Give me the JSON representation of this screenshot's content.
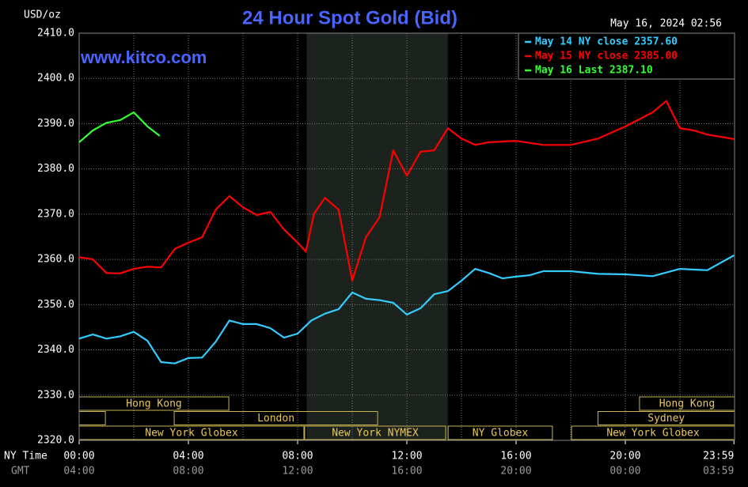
{
  "chart_data": {
    "type": "line",
    "title": "24 Hour Spot Gold (Bid)",
    "y_unit": "USD/oz",
    "timestamp": "May 16, 2024 02:56",
    "watermark": "www.kitco.com",
    "x_axis_labels": [
      "NY Time",
      "GMT"
    ],
    "xlim": [
      0,
      24
    ],
    "xticks": [
      {
        "value": 0,
        "label": "00:00"
      },
      {
        "value": 4,
        "label": "04:00"
      },
      {
        "value": 8,
        "label": "08:00"
      },
      {
        "value": 12,
        "label": "12:00"
      },
      {
        "value": 16,
        "label": "16:00"
      },
      {
        "value": 20,
        "label": "20:00"
      },
      {
        "value": 23.98,
        "label": "23:59"
      }
    ],
    "x_secondary_labels": [
      "04:00",
      "08:00",
      "12:00",
      "16:00",
      "20:00",
      "00:00",
      "03:59"
    ],
    "x_gridlines": [
      0,
      2,
      4,
      6,
      8,
      10,
      12,
      14,
      16,
      18,
      20,
      22,
      24
    ],
    "ylim": [
      2320,
      2410
    ],
    "yticks": [
      {
        "value": 2320,
        "label": "2320.0"
      },
      {
        "value": 2330,
        "label": "2330.0"
      },
      {
        "value": 2340,
        "label": "2340.0"
      },
      {
        "value": 2350,
        "label": "2350.0"
      },
      {
        "value": 2360,
        "label": "2360.0"
      },
      {
        "value": 2370,
        "label": "2370.0"
      },
      {
        "value": 2380,
        "label": "2380.0"
      },
      {
        "value": 2390,
        "label": "2390.0"
      },
      {
        "value": 2400,
        "label": "2400.0"
      },
      {
        "value": 2410,
        "label": "2410.0"
      }
    ],
    "grid": true,
    "shaded_region": [
      8.33,
      13.5
    ],
    "legend_position": "top-right",
    "series": [
      {
        "name": "May 14 NY close 2357.60",
        "color": "#33ccff",
        "x": [
          0,
          0.5,
          1,
          1.5,
          2,
          2.5,
          3,
          3.5,
          4,
          4.5,
          5,
          5.5,
          6,
          6.5,
          7,
          7.5,
          8,
          8.5,
          9,
          9.5,
          10,
          10.5,
          11,
          11.5,
          12,
          12.5,
          13,
          13.5,
          14,
          14.5,
          15,
          15.5,
          16,
          16.5,
          17,
          18,
          19,
          20,
          21,
          22,
          23,
          23.98
        ],
        "values": [
          2342.5,
          2343.4,
          2342.5,
          2343,
          2344,
          2342,
          2337.3,
          2337,
          2338.2,
          2338.3,
          2341.8,
          2346.5,
          2345.7,
          2345.7,
          2344.8,
          2342.7,
          2343.6,
          2346.5,
          2348,
          2349,
          2352.7,
          2351.3,
          2351,
          2350.4,
          2347.8,
          2349.2,
          2352.3,
          2353,
          2355.3,
          2357.9,
          2357,
          2355.8,
          2356.2,
          2356.5,
          2357.4,
          2357.4,
          2356.8,
          2356.7,
          2356.3,
          2357.9,
          2357.6,
          2360.9
        ]
      },
      {
        "name": "May 15 NY close 2385.00",
        "color": "#ff0000",
        "x": [
          0,
          0.5,
          1,
          1.5,
          2,
          2.5,
          3,
          3.5,
          4,
          4.5,
          5,
          5.5,
          6,
          6.5,
          7,
          7.5,
          8,
          8.3,
          8.6,
          9,
          9.5,
          10,
          10.5,
          11,
          11.5,
          12,
          12.5,
          13,
          13.5,
          14,
          14.5,
          15,
          16,
          17,
          18,
          19,
          20,
          21,
          21.5,
          22,
          22.5,
          23,
          23.98
        ],
        "values": [
          2360.5,
          2360,
          2357,
          2356.9,
          2357.9,
          2358.4,
          2358.2,
          2362.3,
          2363.7,
          2364.9,
          2371,
          2374,
          2371.5,
          2369.8,
          2370.5,
          2366.6,
          2363.7,
          2361.7,
          2370.1,
          2373.6,
          2371,
          2355.3,
          2364.9,
          2369.3,
          2384.1,
          2378.5,
          2383.8,
          2384.1,
          2389,
          2386.7,
          2385.3,
          2385.9,
          2386.2,
          2385.3,
          2385.3,
          2386.7,
          2389.4,
          2392.5,
          2395,
          2389,
          2388.5,
          2387.6,
          2386.6
        ]
      },
      {
        "name": "May 16 Last 2387.10",
        "color": "#33ff33",
        "x": [
          0,
          0.5,
          1,
          1.5,
          2,
          2.5,
          2.95
        ],
        "values": [
          2385.9,
          2388.5,
          2390.2,
          2390.8,
          2392.5,
          2389.4,
          2387.3
        ]
      }
    ],
    "sessions": [
      [
        {
          "label": "Hong Kong",
          "start": 0,
          "end": 5.48
        },
        {
          "label": "Hong Kong",
          "start": 20.52,
          "end": 24
        }
      ],
      [
        {
          "start": 0,
          "end": 0.96
        },
        {
          "label": "London",
          "start": 3.48,
          "end": 10.93
        },
        {
          "label": "Sydney",
          "start": 19,
          "end": 24
        }
      ],
      [
        {
          "label": "New York Globex",
          "start": 0,
          "end": 8.23
        },
        {
          "label": "New York NYMEX",
          "start": 8.26,
          "end": 13.42
        },
        {
          "label": "NY Globex",
          "start": 13.51,
          "end": 17.33
        },
        {
          "label": "New York Globex",
          "start": 18.03,
          "end": 24
        }
      ]
    ]
  }
}
